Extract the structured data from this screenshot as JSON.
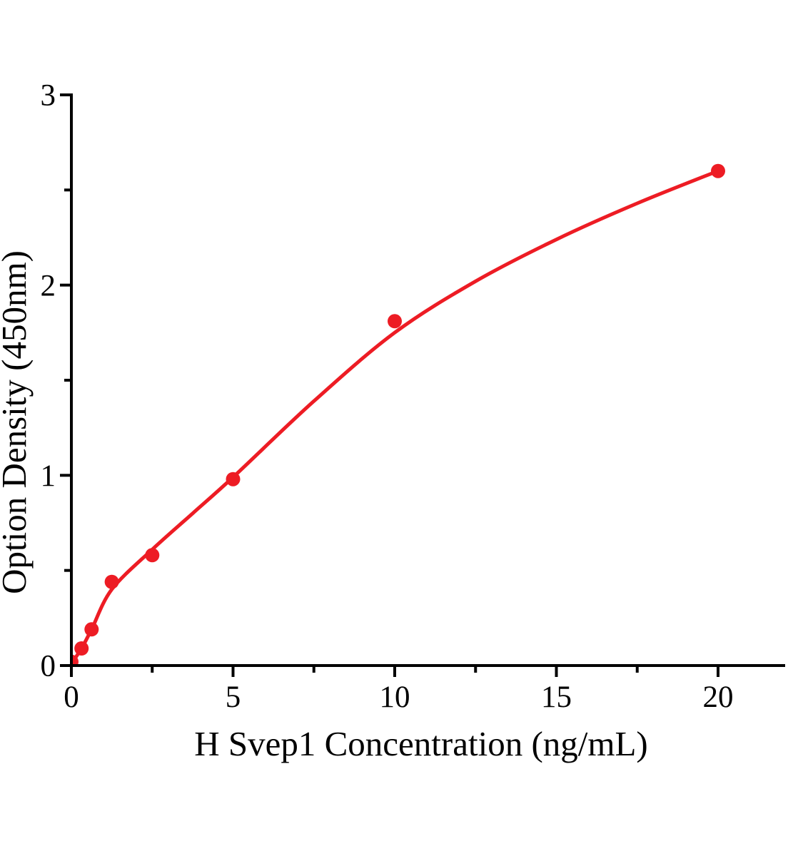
{
  "figure": {
    "background": "#ffffff",
    "plot_type": "elisa-standard-curve"
  },
  "chart_data": {
    "type": "scatter",
    "title": "",
    "xlabel": "H Svep1 Concentration（ng/mL）",
    "ylabel": "Option Density（450nm）",
    "xlim": [
      0,
      22
    ],
    "ylim": [
      0,
      3
    ],
    "grid": false,
    "legend_position": "none",
    "axis_color": "#000000",
    "tick_label_color": "#000000",
    "x_major_ticks": [
      0,
      5,
      10,
      15,
      20
    ],
    "x_minor_ticks": [
      2.5,
      7.5,
      12.5,
      17.5
    ],
    "y_major_ticks": [
      0,
      1,
      2,
      3
    ],
    "y_minor_ticks": [
      0.5,
      1.5,
      2.5
    ],
    "series": [
      {
        "name": "standard-points",
        "type": "scatter",
        "marker": "circle",
        "color": "#ED1C24",
        "x": [
          0,
          0.3125,
          0.625,
          1.25,
          2.5,
          5,
          10,
          20
        ],
        "y": [
          0.02,
          0.09,
          0.19,
          0.44,
          0.58,
          0.98,
          1.81,
          2.6
        ]
      },
      {
        "name": "fitted-curve",
        "type": "line",
        "color": "#ED1C24",
        "x": [
          0,
          0.3125,
          0.625,
          1.25,
          2.5,
          3.75,
          5,
          7.5,
          10,
          12.5,
          15,
          17.5,
          20
        ],
        "y": [
          0.01,
          0.09,
          0.19,
          0.4,
          0.61,
          0.8,
          0.99,
          1.39,
          1.75,
          2.02,
          2.24,
          2.43,
          2.6
        ]
      }
    ]
  }
}
